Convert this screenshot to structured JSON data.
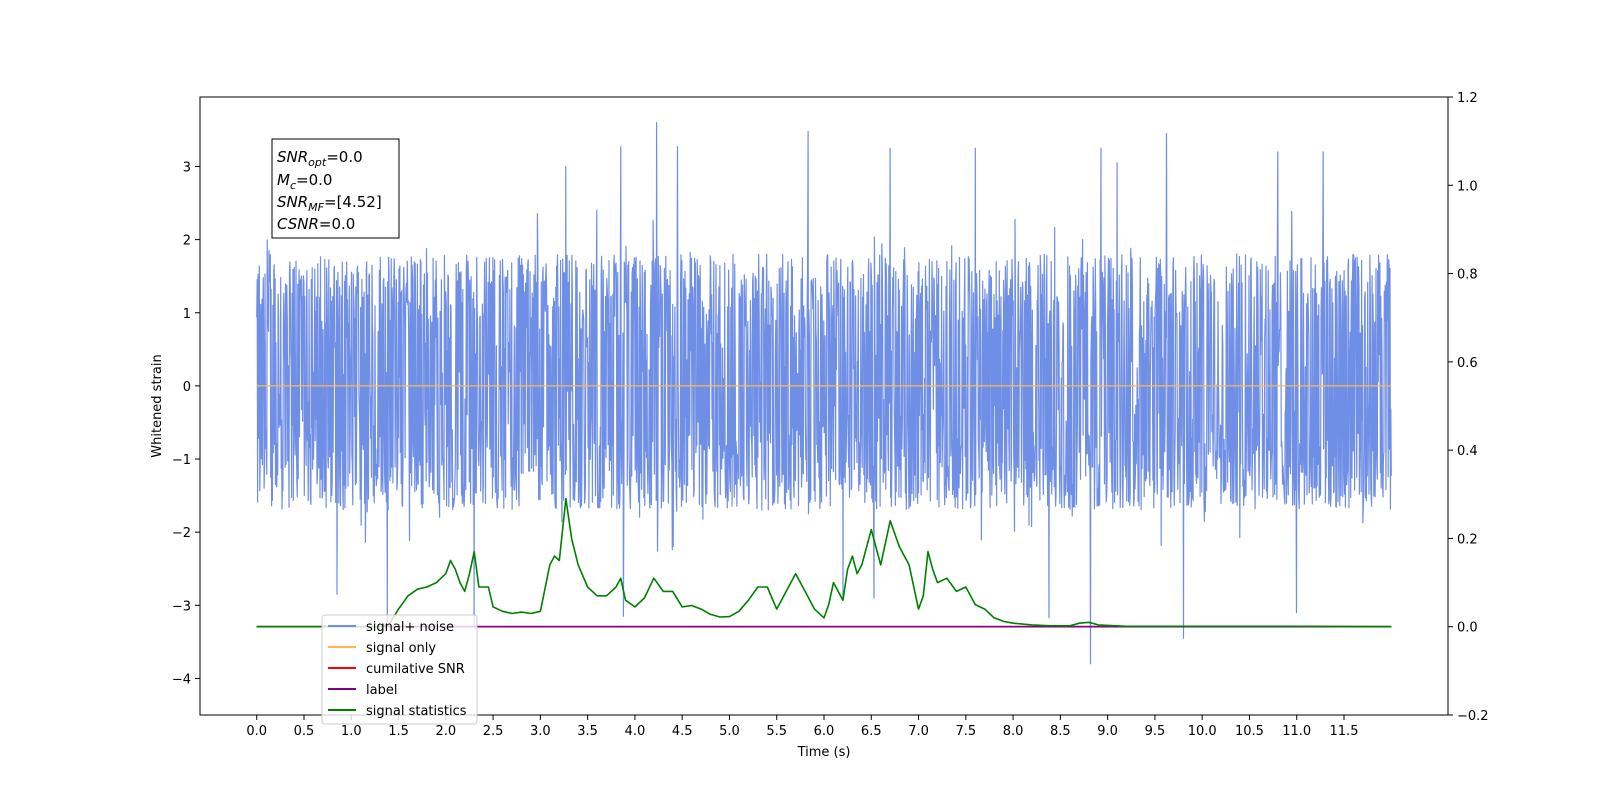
{
  "chart_data": {
    "type": "line",
    "xlabel": "Time (s)",
    "ylabel": "Whitened strain",
    "xlim": [
      -0.6,
      12.6
    ],
    "ylim": [
      -4.5,
      3.95
    ],
    "ylim_right": [
      -0.2,
      1.2
    ],
    "x_ticks": [
      0.0,
      0.5,
      1.0,
      1.5,
      2.0,
      2.5,
      3.0,
      3.5,
      4.0,
      4.5,
      5.0,
      5.5,
      6.0,
      6.5,
      7.0,
      7.5,
      8.0,
      8.5,
      9.0,
      9.5,
      10.0,
      10.5,
      11.0,
      11.5
    ],
    "x_tick_labels": [
      "0.0",
      "0.5",
      "1.0",
      "1.5",
      "2.0",
      "2.5",
      "3.0",
      "3.5",
      "4.0",
      "4.5",
      "5.0",
      "5.5",
      "6.0",
      "6.5",
      "7.0",
      "7.5",
      "8.0",
      "8.5",
      "9.0",
      "9.5",
      "10.0",
      "10.5",
      "11.0",
      "11.5"
    ],
    "y_ticks": [
      -4,
      -3,
      -2,
      -1,
      0,
      1,
      2,
      3
    ],
    "y_tick_labels": [
      "−4",
      "−3",
      "−2",
      "−1",
      "0",
      "1",
      "2",
      "3"
    ],
    "y_right_ticks": [
      -0.2,
      0.0,
      0.2,
      0.4,
      0.6,
      0.8,
      1.0,
      1.2
    ],
    "y_right_tick_labels": [
      "−0.2",
      "0.0",
      "0.2",
      "0.4",
      "0.6",
      "0.8",
      "1.0",
      "1.2"
    ],
    "grid": false,
    "legend_position": "lower-left",
    "series": [
      {
        "name": "signal+ noise",
        "color": "#6f8ee6",
        "axis": "left",
        "x_range": [
          0.0,
          12.0
        ],
        "envelope_typical": [
          -1.7,
          1.8
        ],
        "peaks": [
          {
            "x": 4.23,
            "y": 3.6
          },
          {
            "x": 3.85,
            "y": 3.27
          },
          {
            "x": 5.83,
            "y": 3.48
          },
          {
            "x": 9.62,
            "y": 3.45
          },
          {
            "x": 3.27,
            "y": 3.0
          },
          {
            "x": 4.45,
            "y": 3.27
          },
          {
            "x": 6.7,
            "y": 3.25
          },
          {
            "x": 7.6,
            "y": 3.25
          },
          {
            "x": 8.93,
            "y": 3.25
          },
          {
            "x": 10.8,
            "y": 3.2
          },
          {
            "x": 11.28,
            "y": 3.2
          },
          {
            "x": 9.1,
            "y": 3.05
          }
        ],
        "troughs": [
          {
            "x": 8.82,
            "y": -3.8
          },
          {
            "x": 9.8,
            "y": -3.45
          },
          {
            "x": 2.3,
            "y": -3.3
          },
          {
            "x": 1.38,
            "y": -3.25
          },
          {
            "x": 3.88,
            "y": -3.15
          },
          {
            "x": 8.38,
            "y": -3.17
          },
          {
            "x": 11.0,
            "y": -3.1
          },
          {
            "x": 0.85,
            "y": -2.85
          },
          {
            "x": 6.2,
            "y": -2.9
          },
          {
            "x": 6.53,
            "y": -2.9
          }
        ]
      },
      {
        "name": "signal only",
        "color": "#ffb74d",
        "axis": "left",
        "x": [
          0.0,
          12.0
        ],
        "y": [
          0.0,
          0.0
        ]
      },
      {
        "name": "cumilative SNR",
        "color": "#ff0000",
        "axis": "right",
        "x": [
          0.0,
          12.0
        ],
        "y": [
          0.0,
          0.0
        ]
      },
      {
        "name": "label",
        "color": "#800080",
        "axis": "right",
        "x": [
          0.0,
          12.0
        ],
        "y": [
          0.0,
          0.0
        ]
      },
      {
        "name": "signal statistics",
        "color": "#008000",
        "axis": "right",
        "x": [
          0.0,
          0.6,
          1.0,
          1.2,
          1.3,
          1.4,
          1.5,
          1.6,
          1.7,
          1.8,
          1.9,
          2.0,
          2.05,
          2.1,
          2.15,
          2.2,
          2.25,
          2.3,
          2.35,
          2.4,
          2.45,
          2.5,
          2.6,
          2.7,
          2.8,
          2.9,
          3.0,
          3.1,
          3.15,
          3.2,
          3.27,
          3.33,
          3.4,
          3.5,
          3.6,
          3.7,
          3.8,
          3.85,
          3.9,
          4.0,
          4.1,
          4.2,
          4.3,
          4.4,
          4.5,
          4.6,
          4.7,
          4.8,
          4.9,
          5.0,
          5.1,
          5.2,
          5.3,
          5.4,
          5.5,
          5.6,
          5.7,
          5.8,
          5.9,
          6.0,
          6.05,
          6.1,
          6.15,
          6.2,
          6.25,
          6.3,
          6.35,
          6.4,
          6.5,
          6.6,
          6.7,
          6.8,
          6.9,
          7.0,
          7.05,
          7.1,
          7.15,
          7.2,
          7.3,
          7.4,
          7.5,
          7.6,
          7.7,
          7.8,
          7.9,
          8.0,
          8.2,
          8.4,
          8.6,
          8.7,
          8.8,
          8.9,
          9.2,
          10.0,
          11.0,
          12.0
        ],
        "y": [
          0.0,
          0.0,
          0.0,
          0.0,
          0.0,
          0.005,
          0.04,
          0.07,
          0.085,
          0.09,
          0.1,
          0.12,
          0.15,
          0.13,
          0.1,
          0.08,
          0.12,
          0.17,
          0.09,
          0.09,
          0.09,
          0.045,
          0.035,
          0.03,
          0.033,
          0.03,
          0.035,
          0.14,
          0.16,
          0.15,
          0.29,
          0.2,
          0.14,
          0.09,
          0.07,
          0.07,
          0.09,
          0.11,
          0.06,
          0.045,
          0.065,
          0.11,
          0.08,
          0.08,
          0.045,
          0.048,
          0.04,
          0.028,
          0.022,
          0.023,
          0.035,
          0.06,
          0.09,
          0.09,
          0.04,
          0.08,
          0.12,
          0.08,
          0.04,
          0.02,
          0.05,
          0.1,
          0.08,
          0.06,
          0.13,
          0.16,
          0.12,
          0.14,
          0.22,
          0.14,
          0.24,
          0.18,
          0.14,
          0.04,
          0.07,
          0.17,
          0.13,
          0.1,
          0.11,
          0.08,
          0.09,
          0.05,
          0.04,
          0.02,
          0.012,
          0.008,
          0.004,
          0.002,
          0.002,
          0.008,
          0.01,
          0.004,
          0.001,
          0.001,
          0.001,
          0.0
        ]
      }
    ]
  },
  "info_box": {
    "snr_opt": {
      "name": "SNR",
      "sub": "opt",
      "value": "=0.0"
    },
    "mc": {
      "name": "M",
      "sub": "c",
      "value": "=0.0"
    },
    "snr_mf": {
      "name": "SNR",
      "sub": "MF",
      "value": "=[4.52]"
    },
    "csnr": {
      "name": "CSNR",
      "value": "=0.0"
    }
  },
  "legend": {
    "items": [
      {
        "label": "signal+ noise",
        "color": "#6f8ee6"
      },
      {
        "label": "signal only",
        "color": "#ffb74d"
      },
      {
        "label": "cumilative SNR",
        "color": "#ff0000"
      },
      {
        "label": "label",
        "color": "#800080"
      },
      {
        "label": "signal statistics",
        "color": "#008000"
      }
    ]
  }
}
